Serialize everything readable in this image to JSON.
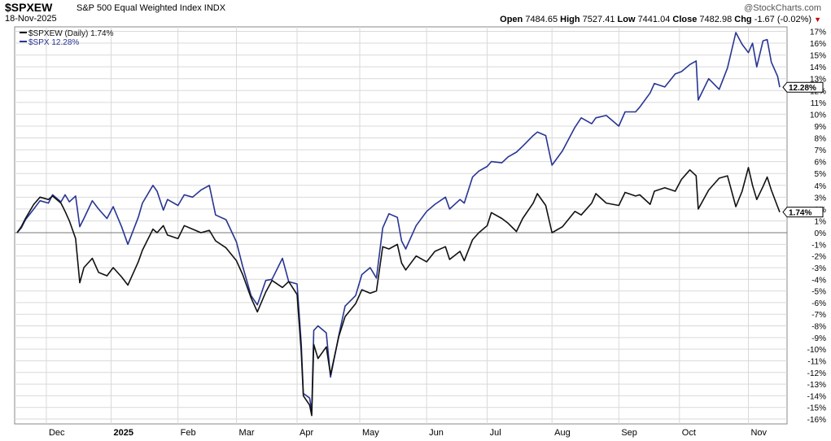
{
  "header": {
    "symbol": "$SPXEW",
    "name": "S&P 500 Equal Weighted Index",
    "exchange": "INDX",
    "date": "18-Nov-2025",
    "brand": "@StockCharts.com",
    "open_label": "Open",
    "open": "7484.65",
    "high_label": "High",
    "high": "7527.41",
    "low_label": "Low",
    "low": "7441.04",
    "close_label": "Close",
    "close": "7482.98",
    "chg_label": "Chg",
    "chg": "-1.67 (-0.02%)",
    "chg_direction": "down"
  },
  "colors": {
    "spxew": "#111111",
    "spx": "#283593",
    "grid": "#d9d9d9",
    "zero": "#777777",
    "bg": "#ffffff"
  },
  "chart_data": {
    "type": "line",
    "legend_position": "top-left",
    "x_tick_labels": [
      "Dec",
      "2025",
      "Feb",
      "Mar",
      "Apr",
      "May",
      "Jun",
      "Jul",
      "Aug",
      "Sep",
      "Oct",
      "Nov"
    ],
    "x_tick_dates": [
      "2024-12-02",
      "2025-01-02",
      "2025-02-03",
      "2025-03-03",
      "2025-04-01",
      "2025-05-01",
      "2025-06-02",
      "2025-07-01",
      "2025-08-01",
      "2025-09-02",
      "2025-10-01",
      "2025-11-03"
    ],
    "ylim": [
      -16.5,
      17.5
    ],
    "y_ticks": [
      17,
      16,
      15,
      14,
      13,
      12,
      11,
      10,
      9,
      8,
      7,
      6,
      5,
      4,
      3,
      2,
      1,
      0,
      -1,
      -2,
      -3,
      -4,
      -5,
      -6,
      -7,
      -8,
      -9,
      -10,
      -11,
      -12,
      -13,
      -14,
      -15,
      -16
    ],
    "y_tick_suffix": "%",
    "grid": true,
    "series": [
      {
        "name": "$SPXEW (Daily)",
        "last_label": "1.74%",
        "color": "#111111",
        "points": [
          [
            "2024-11-18",
            0.0
          ],
          [
            "2024-11-20",
            0.5
          ],
          [
            "2024-11-22",
            1.2
          ],
          [
            "2024-11-26",
            2.4
          ],
          [
            "2024-11-29",
            3.0
          ],
          [
            "2024-12-03",
            2.8
          ],
          [
            "2024-12-05",
            3.1
          ],
          [
            "2024-12-09",
            2.5
          ],
          [
            "2024-12-11",
            1.8
          ],
          [
            "2024-12-13",
            1.0
          ],
          [
            "2024-12-16",
            -0.5
          ],
          [
            "2024-12-18",
            -4.3
          ],
          [
            "2024-12-20",
            -3.0
          ],
          [
            "2024-12-24",
            -2.2
          ],
          [
            "2024-12-27",
            -3.4
          ],
          [
            "2024-12-31",
            -3.7
          ],
          [
            "2025-01-03",
            -3.0
          ],
          [
            "2025-01-07",
            -3.8
          ],
          [
            "2025-01-10",
            -4.5
          ],
          [
            "2025-01-15",
            -2.5
          ],
          [
            "2025-01-17",
            -1.5
          ],
          [
            "2025-01-22",
            0.3
          ],
          [
            "2025-01-24",
            0.0
          ],
          [
            "2025-01-27",
            0.6
          ],
          [
            "2025-01-29",
            -0.2
          ],
          [
            "2025-02-03",
            -0.5
          ],
          [
            "2025-02-06",
            0.6
          ],
          [
            "2025-02-10",
            0.3
          ],
          [
            "2025-02-14",
            0.0
          ],
          [
            "2025-02-18",
            0.2
          ],
          [
            "2025-02-21",
            -0.7
          ],
          [
            "2025-02-26",
            -1.3
          ],
          [
            "2025-03-03",
            -2.4
          ],
          [
            "2025-03-06",
            -3.6
          ],
          [
            "2025-03-10",
            -5.6
          ],
          [
            "2025-03-13",
            -6.8
          ],
          [
            "2025-03-17",
            -5.1
          ],
          [
            "2025-03-20",
            -4.1
          ],
          [
            "2025-03-25",
            -4.7
          ],
          [
            "2025-03-28",
            -4.2
          ],
          [
            "2025-04-01",
            -5.3
          ],
          [
            "2025-04-03",
            -10.2
          ],
          [
            "2025-04-04",
            -14.0
          ],
          [
            "2025-04-07",
            -14.8
          ],
          [
            "2025-04-08",
            -15.7
          ],
          [
            "2025-04-09",
            -9.6
          ],
          [
            "2025-04-11",
            -10.8
          ],
          [
            "2025-04-15",
            -9.8
          ],
          [
            "2025-04-17",
            -12.2
          ],
          [
            "2025-04-21",
            -8.9
          ],
          [
            "2025-04-24",
            -7.2
          ],
          [
            "2025-04-29",
            -6.1
          ],
          [
            "2025-05-02",
            -4.9
          ],
          [
            "2025-05-06",
            -5.2
          ],
          [
            "2025-05-09",
            -5.0
          ],
          [
            "2025-05-12",
            -1.2
          ],
          [
            "2025-05-15",
            -1.4
          ],
          [
            "2025-05-19",
            -1.0
          ],
          [
            "2025-05-21",
            -2.6
          ],
          [
            "2025-05-23",
            -3.2
          ],
          [
            "2025-05-28",
            -2.0
          ],
          [
            "2025-06-02",
            -2.5
          ],
          [
            "2025-06-06",
            -1.6
          ],
          [
            "2025-06-11",
            -1.2
          ],
          [
            "2025-06-13",
            -2.3
          ],
          [
            "2025-06-18",
            -1.6
          ],
          [
            "2025-06-20",
            -2.4
          ],
          [
            "2025-06-24",
            -0.6
          ],
          [
            "2025-06-27",
            0.0
          ],
          [
            "2025-07-01",
            0.6
          ],
          [
            "2025-07-03",
            1.7
          ],
          [
            "2025-07-08",
            1.2
          ],
          [
            "2025-07-11",
            0.8
          ],
          [
            "2025-07-15",
            0.1
          ],
          [
            "2025-07-18",
            1.2
          ],
          [
            "2025-07-23",
            2.5
          ],
          [
            "2025-07-25",
            3.3
          ],
          [
            "2025-07-29",
            2.3
          ],
          [
            "2025-08-01",
            0.0
          ],
          [
            "2025-08-06",
            0.5
          ],
          [
            "2025-08-12",
            1.8
          ],
          [
            "2025-08-15",
            1.5
          ],
          [
            "2025-08-20",
            2.5
          ],
          [
            "2025-08-22",
            3.3
          ],
          [
            "2025-08-27",
            2.5
          ],
          [
            "2025-09-02",
            2.3
          ],
          [
            "2025-09-05",
            3.4
          ],
          [
            "2025-09-10",
            3.1
          ],
          [
            "2025-09-12",
            3.2
          ],
          [
            "2025-09-17",
            2.4
          ],
          [
            "2025-09-19",
            3.5
          ],
          [
            "2025-09-24",
            3.8
          ],
          [
            "2025-09-29",
            3.5
          ],
          [
            "2025-10-02",
            4.5
          ],
          [
            "2025-10-06",
            5.3
          ],
          [
            "2025-10-09",
            4.8
          ],
          [
            "2025-10-10",
            2.0
          ],
          [
            "2025-10-15",
            3.6
          ],
          [
            "2025-10-20",
            4.6
          ],
          [
            "2025-10-24",
            4.8
          ],
          [
            "2025-10-28",
            2.2
          ],
          [
            "2025-10-31",
            3.5
          ],
          [
            "2025-11-03",
            5.5
          ],
          [
            "2025-11-05",
            4.0
          ],
          [
            "2025-11-07",
            2.8
          ],
          [
            "2025-11-10",
            3.9
          ],
          [
            "2025-11-12",
            4.7
          ],
          [
            "2025-11-14",
            3.6
          ],
          [
            "2025-11-17",
            2.2
          ],
          [
            "2025-11-18",
            1.74
          ]
        ]
      },
      {
        "name": "$SPX",
        "last_label": "12.28%",
        "color": "#283593",
        "points": [
          [
            "2024-11-18",
            0.0
          ],
          [
            "2024-11-20",
            0.4
          ],
          [
            "2024-11-22",
            1.1
          ],
          [
            "2024-11-26",
            2.0
          ],
          [
            "2024-11-29",
            2.7
          ],
          [
            "2024-12-03",
            2.5
          ],
          [
            "2024-12-05",
            3.2
          ],
          [
            "2024-12-09",
            2.6
          ],
          [
            "2024-12-11",
            3.2
          ],
          [
            "2024-12-13",
            2.6
          ],
          [
            "2024-12-16",
            3.1
          ],
          [
            "2024-12-18",
            0.5
          ],
          [
            "2024-12-20",
            1.2
          ],
          [
            "2024-12-24",
            2.7
          ],
          [
            "2024-12-27",
            2.0
          ],
          [
            "2024-12-31",
            1.2
          ],
          [
            "2025-01-03",
            2.2
          ],
          [
            "2025-01-07",
            0.5
          ],
          [
            "2025-01-10",
            -1.0
          ],
          [
            "2025-01-15",
            1.3
          ],
          [
            "2025-01-17",
            2.5
          ],
          [
            "2025-01-22",
            4.0
          ],
          [
            "2025-01-24",
            3.5
          ],
          [
            "2025-01-27",
            1.9
          ],
          [
            "2025-01-29",
            2.8
          ],
          [
            "2025-02-03",
            2.3
          ],
          [
            "2025-02-06",
            3.2
          ],
          [
            "2025-02-10",
            3.0
          ],
          [
            "2025-02-14",
            3.6
          ],
          [
            "2025-02-18",
            4.0
          ],
          [
            "2025-02-21",
            1.5
          ],
          [
            "2025-02-26",
            1.1
          ],
          [
            "2025-03-03",
            -0.8
          ],
          [
            "2025-03-06",
            -2.9
          ],
          [
            "2025-03-10",
            -5.4
          ],
          [
            "2025-03-13",
            -6.2
          ],
          [
            "2025-03-17",
            -4.1
          ],
          [
            "2025-03-20",
            -4.0
          ],
          [
            "2025-03-25",
            -2.2
          ],
          [
            "2025-03-28",
            -4.2
          ],
          [
            "2025-04-01",
            -4.4
          ],
          [
            "2025-04-03",
            -9.5
          ],
          [
            "2025-04-04",
            -13.8
          ],
          [
            "2025-04-07",
            -14.2
          ],
          [
            "2025-04-08",
            -15.3
          ],
          [
            "2025-04-09",
            -8.4
          ],
          [
            "2025-04-11",
            -8.0
          ],
          [
            "2025-04-15",
            -8.6
          ],
          [
            "2025-04-17",
            -12.4
          ],
          [
            "2025-04-21",
            -8.8
          ],
          [
            "2025-04-24",
            -6.3
          ],
          [
            "2025-04-29",
            -5.4
          ],
          [
            "2025-05-02",
            -3.6
          ],
          [
            "2025-05-06",
            -3.0
          ],
          [
            "2025-05-09",
            -3.9
          ],
          [
            "2025-05-12",
            0.4
          ],
          [
            "2025-05-15",
            1.6
          ],
          [
            "2025-05-19",
            1.3
          ],
          [
            "2025-05-21",
            -0.7
          ],
          [
            "2025-05-23",
            -1.4
          ],
          [
            "2025-05-28",
            0.6
          ],
          [
            "2025-06-02",
            1.8
          ],
          [
            "2025-06-06",
            2.4
          ],
          [
            "2025-06-11",
            3.0
          ],
          [
            "2025-06-13",
            2.0
          ],
          [
            "2025-06-18",
            2.8
          ],
          [
            "2025-06-20",
            2.5
          ],
          [
            "2025-06-24",
            4.7
          ],
          [
            "2025-06-27",
            5.2
          ],
          [
            "2025-07-01",
            5.6
          ],
          [
            "2025-07-03",
            6.0
          ],
          [
            "2025-07-08",
            5.9
          ],
          [
            "2025-07-11",
            6.4
          ],
          [
            "2025-07-15",
            6.8
          ],
          [
            "2025-07-18",
            7.3
          ],
          [
            "2025-07-23",
            8.2
          ],
          [
            "2025-07-25",
            8.5
          ],
          [
            "2025-07-29",
            8.2
          ],
          [
            "2025-08-01",
            5.7
          ],
          [
            "2025-08-06",
            6.9
          ],
          [
            "2025-08-12",
            8.9
          ],
          [
            "2025-08-15",
            9.7
          ],
          [
            "2025-08-20",
            9.2
          ],
          [
            "2025-08-22",
            9.7
          ],
          [
            "2025-08-27",
            9.9
          ],
          [
            "2025-09-02",
            9.0
          ],
          [
            "2025-09-05",
            10.2
          ],
          [
            "2025-09-10",
            10.2
          ],
          [
            "2025-09-12",
            10.6
          ],
          [
            "2025-09-17",
            11.8
          ],
          [
            "2025-09-19",
            12.6
          ],
          [
            "2025-09-24",
            12.3
          ],
          [
            "2025-09-29",
            13.4
          ],
          [
            "2025-10-02",
            13.6
          ],
          [
            "2025-10-06",
            14.2
          ],
          [
            "2025-10-09",
            14.5
          ],
          [
            "2025-10-10",
            11.2
          ],
          [
            "2025-10-15",
            13.0
          ],
          [
            "2025-10-20",
            12.1
          ],
          [
            "2025-10-24",
            13.9
          ],
          [
            "2025-10-28",
            16.9
          ],
          [
            "2025-10-31",
            15.9
          ],
          [
            "2025-11-03",
            15.2
          ],
          [
            "2025-11-05",
            16.0
          ],
          [
            "2025-11-07",
            14.0
          ],
          [
            "2025-11-10",
            16.2
          ],
          [
            "2025-11-12",
            16.3
          ],
          [
            "2025-11-14",
            14.4
          ],
          [
            "2025-11-17",
            13.2
          ],
          [
            "2025-11-18",
            12.28
          ]
        ]
      }
    ]
  }
}
